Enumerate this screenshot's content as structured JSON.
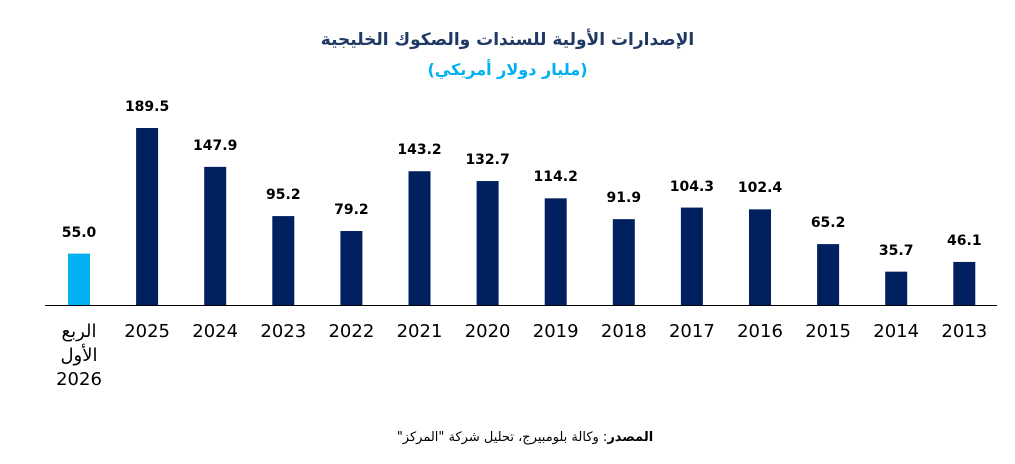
{
  "chart_data": {
    "type": "bar",
    "title": "الإصدارات الأولية للسندات والصكوك الخليجية",
    "subtitle": "(مليار دولار أمريكي)",
    "categories": [
      "الربع الأول 2026",
      "2025",
      "2024",
      "2023",
      "2022",
      "2021",
      "2020",
      "2019",
      "2018",
      "2017",
      "2016",
      "2015",
      "2014",
      "2013"
    ],
    "values": [
      55.0,
      189.5,
      147.9,
      95.2,
      79.2,
      143.2,
      132.7,
      114.2,
      91.9,
      104.3,
      102.4,
      65.2,
      35.7,
      46.1
    ],
    "value_labels": [
      "55.0",
      "189.5",
      "147.9",
      "95.2",
      "79.2",
      "143.2",
      "132.7",
      "114.2",
      "91.9",
      "104.3",
      "102.4",
      "65.2",
      "35.7",
      "46.1"
    ],
    "colors": [
      "#00b0f0",
      "#002060",
      "#002060",
      "#002060",
      "#002060",
      "#002060",
      "#002060",
      "#002060",
      "#002060",
      "#002060",
      "#002060",
      "#002060",
      "#002060",
      "#002060"
    ],
    "source_label": "المصدر",
    "source_text": ": وكالة بلومبيرج، تحليل شركة \"المركز\""
  }
}
